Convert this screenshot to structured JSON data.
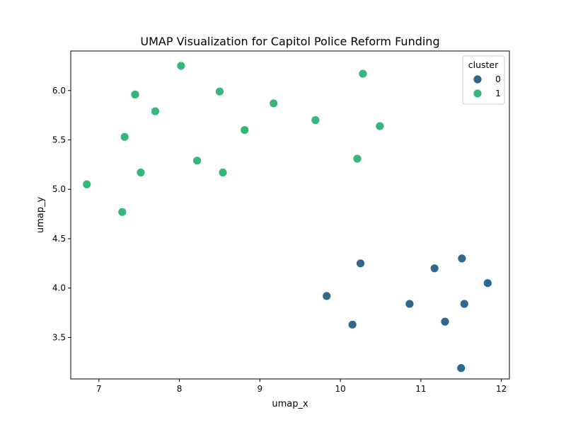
{
  "chart_data": {
    "type": "scatter",
    "title": "UMAP Visualization for Capitol Police Reform Funding",
    "xlabel": "umap_x",
    "ylabel": "umap_y",
    "xlim": [
      6.65,
      12.1
    ],
    "ylim": [
      3.08,
      6.4
    ],
    "xticks": [
      7,
      8,
      9,
      10,
      11,
      12
    ],
    "yticks": [
      3.5,
      4.0,
      4.5,
      5.0,
      5.5,
      6.0
    ],
    "xtick_labels": [
      "7",
      "8",
      "9",
      "10",
      "11",
      "12"
    ],
    "ytick_labels": [
      "3.5",
      "4.0",
      "4.5",
      "5.0",
      "5.5",
      "6.0"
    ],
    "grid": false,
    "legend": {
      "title": "cluster",
      "placement": "top-right",
      "entries": [
        "0",
        "1"
      ]
    },
    "series": [
      {
        "name": "0",
        "color": "#31688e",
        "points": [
          {
            "x": 9.83,
            "y": 3.92
          },
          {
            "x": 10.15,
            "y": 3.63
          },
          {
            "x": 10.25,
            "y": 4.25
          },
          {
            "x": 10.86,
            "y": 3.84
          },
          {
            "x": 11.17,
            "y": 4.2
          },
          {
            "x": 11.3,
            "y": 3.66
          },
          {
            "x": 11.51,
            "y": 4.3
          },
          {
            "x": 11.54,
            "y": 3.84
          },
          {
            "x": 11.5,
            "y": 3.19
          },
          {
            "x": 11.83,
            "y": 4.05
          }
        ]
      },
      {
        "name": "1",
        "color": "#35b779",
        "points": [
          {
            "x": 6.85,
            "y": 5.05
          },
          {
            "x": 7.29,
            "y": 4.77
          },
          {
            "x": 7.32,
            "y": 5.53
          },
          {
            "x": 7.45,
            "y": 5.96
          },
          {
            "x": 7.52,
            "y": 5.17
          },
          {
            "x": 7.7,
            "y": 5.79
          },
          {
            "x": 8.02,
            "y": 6.25
          },
          {
            "x": 8.22,
            "y": 5.29
          },
          {
            "x": 8.5,
            "y": 5.99
          },
          {
            "x": 8.54,
            "y": 5.17
          },
          {
            "x": 8.81,
            "y": 5.6
          },
          {
            "x": 9.17,
            "y": 5.87
          },
          {
            "x": 9.69,
            "y": 5.7
          },
          {
            "x": 10.21,
            "y": 5.31
          },
          {
            "x": 10.28,
            "y": 6.17
          },
          {
            "x": 10.49,
            "y": 5.64
          }
        ]
      }
    ]
  }
}
